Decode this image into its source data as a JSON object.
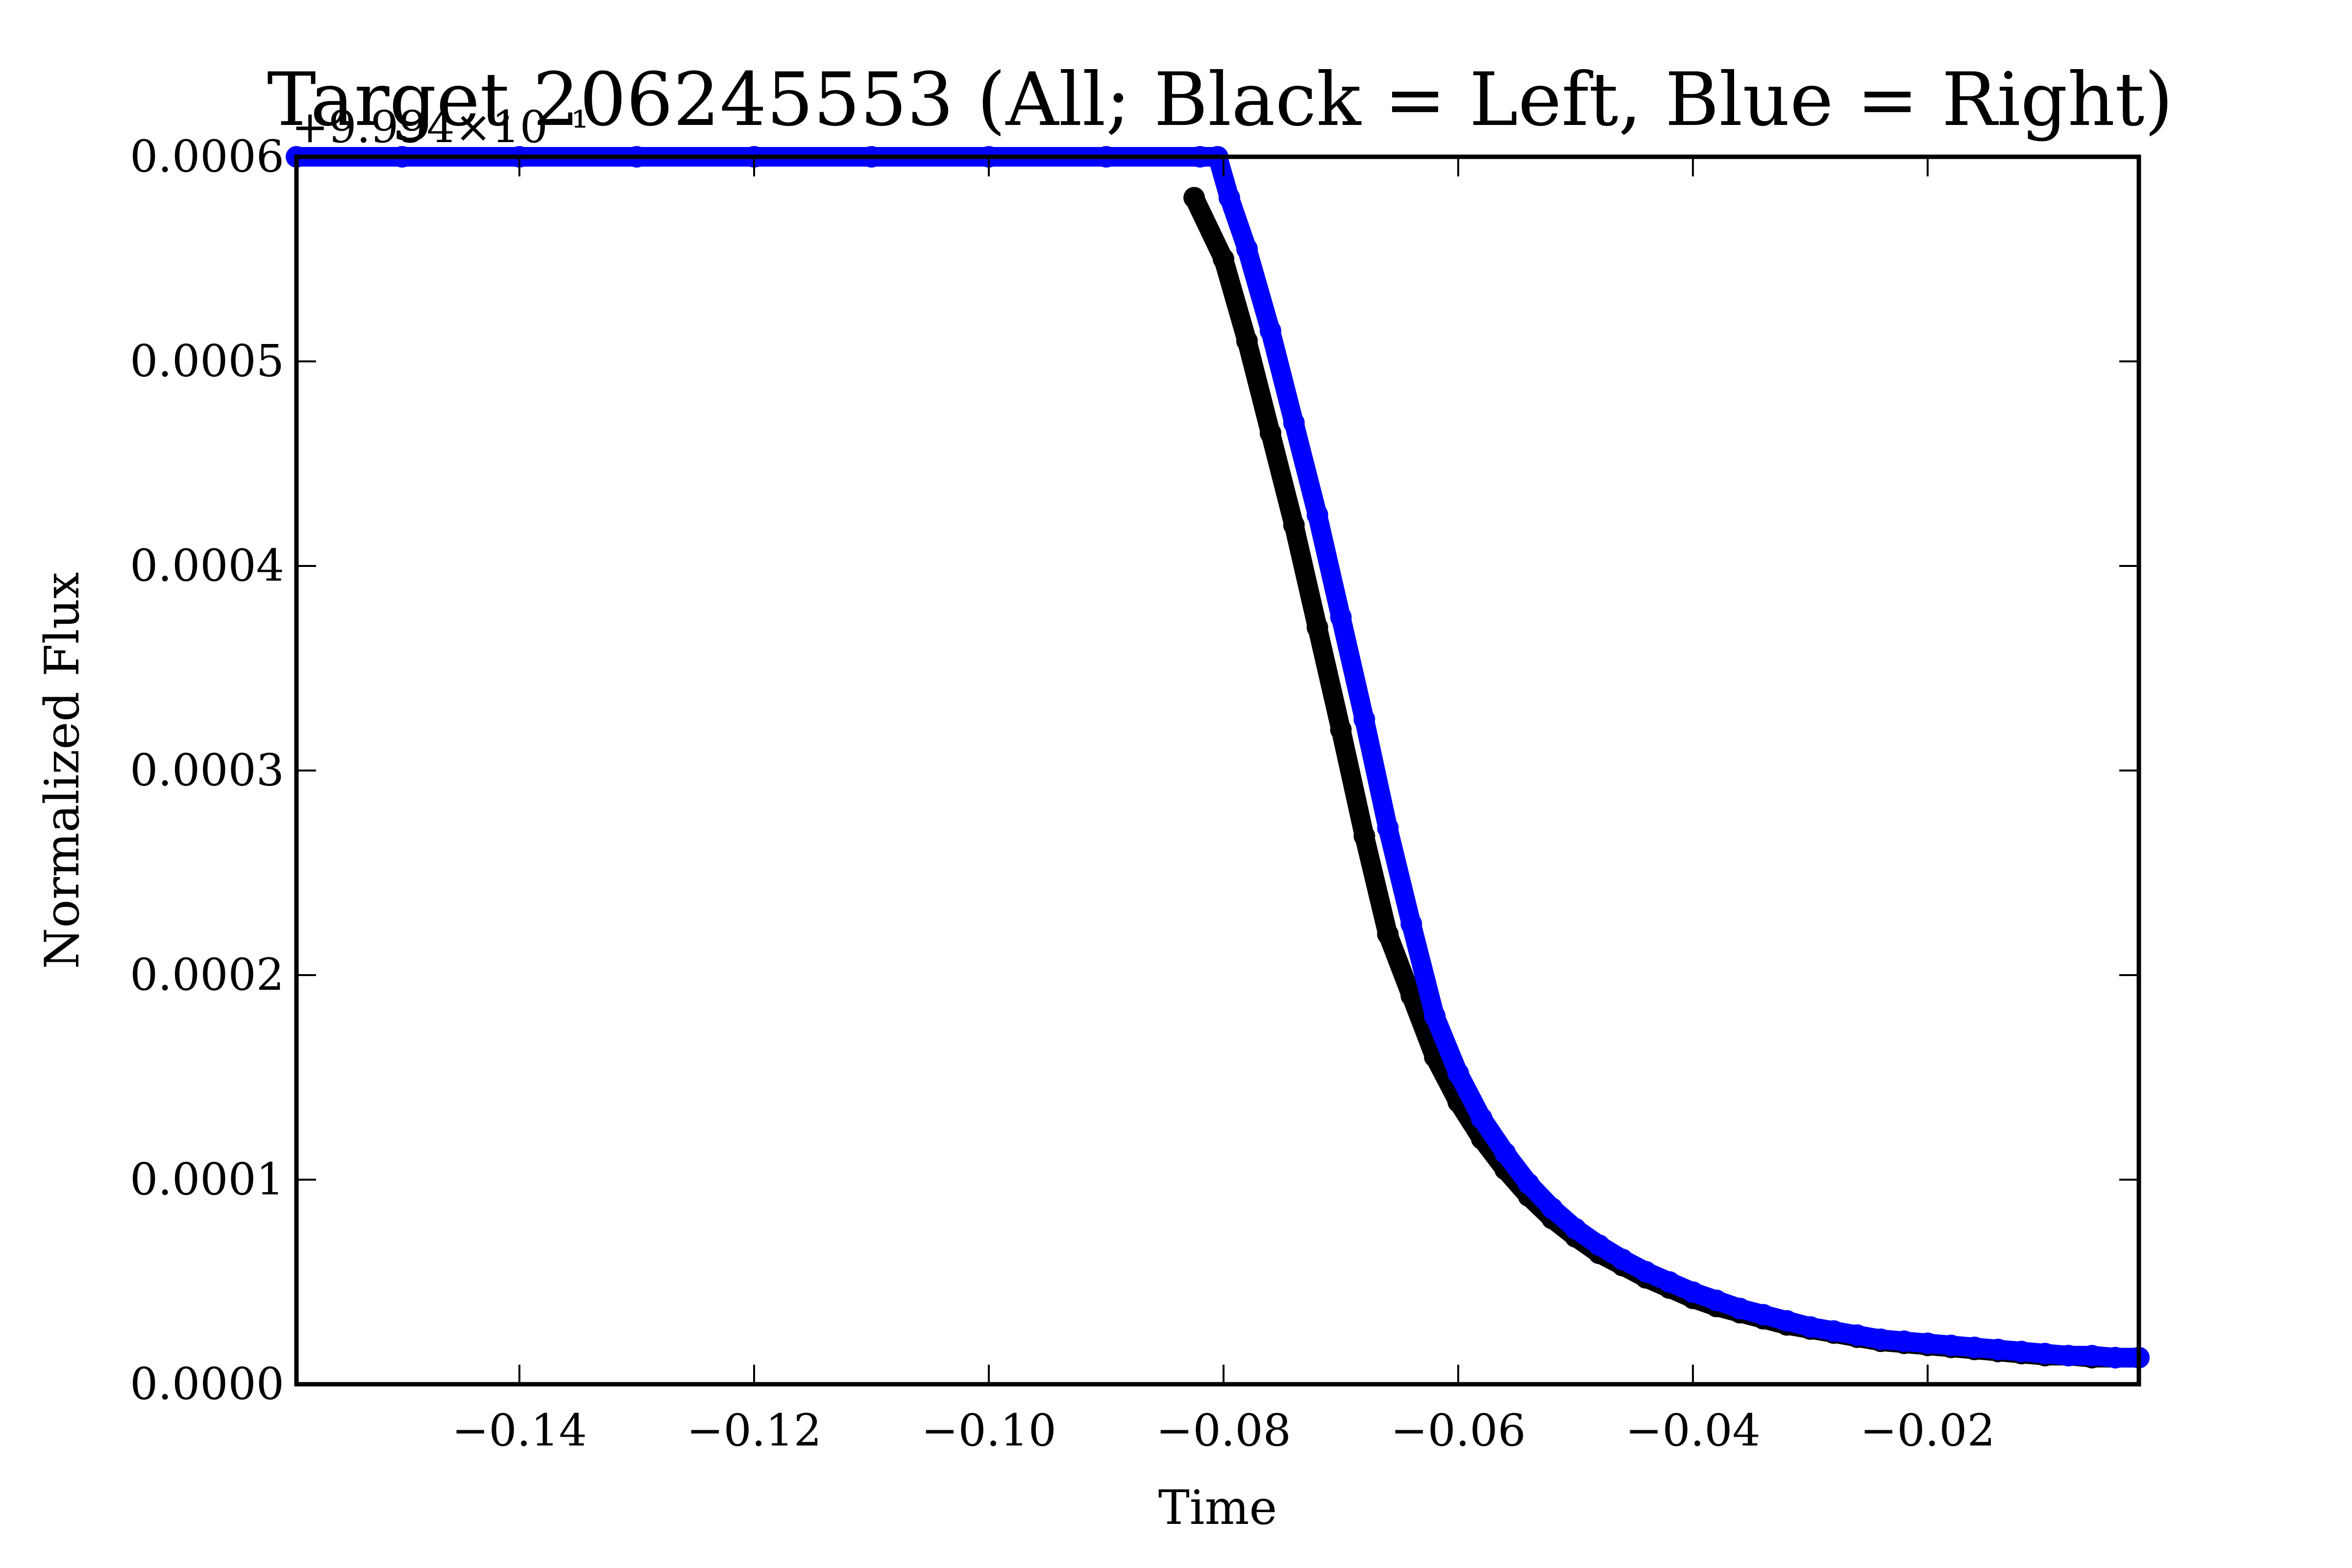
{
  "chart_data": {
    "type": "scatter",
    "title": "Target 206245553 (All; Black = Left, Blue = Right)",
    "xlabel": "Time",
    "ylabel": "Normalized Flux",
    "offset_label": "+9.994×10⁻¹",
    "xlim": [
      -0.159,
      -0.002
    ],
    "ylim": [
      0.0,
      0.0006
    ],
    "x_ticks": [
      -0.14,
      -0.12,
      -0.1,
      -0.08,
      -0.06,
      -0.04,
      -0.02
    ],
    "x_tick_labels": [
      "−0.14",
      "−0.12",
      "−0.10",
      "−0.08",
      "−0.06",
      "−0.04",
      "−0.02"
    ],
    "y_ticks": [
      0.0,
      0.0001,
      0.0002,
      0.0003,
      0.0004,
      0.0005,
      0.0006
    ],
    "y_tick_labels": [
      "0.0000",
      "0.0001",
      "0.0002",
      "0.0003",
      "0.0004",
      "0.0005",
      "0.0006"
    ],
    "grid": false,
    "series": [
      {
        "name": "Left",
        "color": "#000000",
        "x": [
          -0.0825,
          -0.08,
          -0.078,
          -0.076,
          -0.074,
          -0.072,
          -0.07,
          -0.068,
          -0.066,
          -0.064,
          -0.062,
          -0.06,
          -0.058,
          -0.056,
          -0.054,
          -0.052,
          -0.05,
          -0.048,
          -0.046,
          -0.044,
          -0.042,
          -0.04,
          -0.038,
          -0.036,
          -0.034,
          -0.032,
          -0.03,
          -0.028,
          -0.026,
          -0.024,
          -0.022,
          -0.02,
          -0.018,
          -0.016,
          -0.014,
          -0.012,
          -0.01,
          -0.008,
          -0.006,
          -0.004,
          -0.002
        ],
        "y": [
          0.00058,
          0.00055,
          0.00051,
          0.000465,
          0.00042,
          0.00037,
          0.00032,
          0.000268,
          0.00022,
          0.00019,
          0.00016,
          0.000138,
          0.00012,
          0.000105,
          9.2e-05,
          8.1e-05,
          7.2e-05,
          6.4e-05,
          5.8e-05,
          5.2e-05,
          4.7e-05,
          4.2e-05,
          3.8e-05,
          3.5e-05,
          3.2e-05,
          2.9e-05,
          2.7e-05,
          2.5e-05,
          2.3e-05,
          2.1e-05,
          2e-05,
          1.9e-05,
          1.8e-05,
          1.7e-05,
          1.6e-05,
          1.5e-05,
          1.4e-05,
          1.4e-05,
          1.3e-05,
          1.3e-05,
          1.3e-05
        ]
      },
      {
        "name": "Right",
        "color": "#0000ff",
        "x": [
          -0.159,
          -0.15,
          -0.14,
          -0.13,
          -0.12,
          -0.11,
          -0.1,
          -0.09,
          -0.082,
          -0.0805,
          -0.0795,
          -0.078,
          -0.076,
          -0.074,
          -0.072,
          -0.07,
          -0.068,
          -0.066,
          -0.064,
          -0.062,
          -0.06,
          -0.058,
          -0.056,
          -0.054,
          -0.052,
          -0.05,
          -0.048,
          -0.046,
          -0.044,
          -0.042,
          -0.04,
          -0.038,
          -0.036,
          -0.034,
          -0.032,
          -0.03,
          -0.028,
          -0.026,
          -0.024,
          -0.022,
          -0.02,
          -0.018,
          -0.016,
          -0.014,
          -0.012,
          -0.01,
          -0.008,
          -0.006,
          -0.004,
          -0.002
        ],
        "y": [
          0.0006,
          0.0006,
          0.0006,
          0.0006,
          0.0006,
          0.0006,
          0.0006,
          0.0006,
          0.0006,
          0.0006,
          0.00058,
          0.000555,
          0.000515,
          0.00047,
          0.000425,
          0.000375,
          0.000325,
          0.000272,
          0.000225,
          0.00018,
          0.000152,
          0.00013,
          0.000113,
          9.8e-05,
          8.6e-05,
          7.6e-05,
          6.8e-05,
          6.1e-05,
          5.5e-05,
          5e-05,
          4.5e-05,
          4.1e-05,
          3.7e-05,
          3.4e-05,
          3.1e-05,
          2.8e-05,
          2.6e-05,
          2.4e-05,
          2.2e-05,
          2.1e-05,
          2e-05,
          1.9e-05,
          1.8e-05,
          1.7e-05,
          1.6e-05,
          1.5e-05,
          1.4e-05,
          1.4e-05,
          1.3e-05,
          1.3e-05
        ]
      }
    ]
  }
}
